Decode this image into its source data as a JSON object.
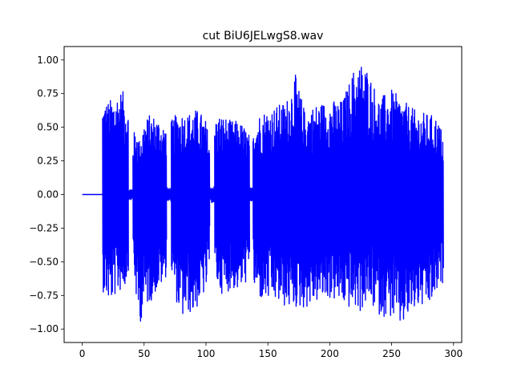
{
  "chart_data": {
    "type": "line",
    "title": "cut BiU6JELwgS8.wav",
    "xlabel": "",
    "ylabel": "",
    "xlim": [
      -14.6,
      306.6
    ],
    "ylim": [
      -1.1,
      1.1
    ],
    "xticks": [
      0,
      50,
      100,
      150,
      200,
      250,
      300
    ],
    "yticks": [
      -1.0,
      -0.75,
      -0.5,
      -0.25,
      0.0,
      0.25,
      0.5,
      0.75,
      1.0
    ],
    "xtick_labels": [
      "0",
      "50",
      "100",
      "150",
      "200",
      "250",
      "300"
    ],
    "ytick_labels": [
      "−1.00",
      "−0.75",
      "−0.50",
      "−0.25",
      "0.00",
      "0.25",
      "0.50",
      "0.75",
      "1.00"
    ],
    "grid": false,
    "line_color": "#0000ff",
    "series": [
      {
        "segments": [
          {
            "type": "silence",
            "x": [
              0,
              16.5
            ]
          },
          {
            "type": "burst",
            "x": [
              16.5,
              37.5
            ],
            "envelope": [
              [
                16.5,
                0.7,
                -0.72
              ],
              [
                22,
                0.7,
                -0.82
              ],
              [
                27,
                0.75,
                -0.75
              ],
              [
                31,
                0.78,
                -0.72
              ],
              [
                35,
                0.75,
                -0.68
              ],
              [
                37.5,
                0.6,
                -0.55
              ]
            ]
          },
          {
            "type": "gap",
            "x": [
              37.5,
              41
            ],
            "amp": 0.04
          },
          {
            "type": "burst",
            "x": [
              41,
              68
            ],
            "envelope": [
              [
                41,
                0.45,
                -0.5
              ],
              [
                44,
                0.5,
                -0.85
              ],
              [
                46,
                0.4,
                -0.98
              ],
              [
                50,
                0.55,
                -0.85
              ],
              [
                55,
                0.6,
                -0.8
              ],
              [
                60,
                0.58,
                -0.72
              ],
              [
                64,
                0.55,
                -0.68
              ],
              [
                68,
                0.5,
                -0.6
              ]
            ]
          },
          {
            "type": "gap",
            "x": [
              68,
              72
            ],
            "amp": 0.05
          },
          {
            "type": "burst",
            "x": [
              72,
              103
            ],
            "envelope": [
              [
                72,
                0.55,
                -0.6
              ],
              [
                76,
                0.6,
                -0.8
              ],
              [
                80,
                0.62,
                -0.94
              ],
              [
                85,
                0.6,
                -0.88
              ],
              [
                90,
                0.64,
                -0.9
              ],
              [
                95,
                0.62,
                -0.8
              ],
              [
                100,
                0.55,
                -0.72
              ],
              [
                103,
                0.4,
                -0.5
              ]
            ]
          },
          {
            "type": "gap",
            "x": [
              103,
              107
            ],
            "amp": 0.06
          },
          {
            "type": "burst",
            "x": [
              107,
              135
            ],
            "envelope": [
              [
                107,
                0.55,
                -0.6
              ],
              [
                110,
                0.6,
                -0.72
              ],
              [
                115,
                0.58,
                -0.75
              ],
              [
                120,
                0.55,
                -0.7
              ],
              [
                125,
                0.55,
                -0.72
              ],
              [
                130,
                0.52,
                -0.7
              ],
              [
                135,
                0.45,
                -0.6
              ]
            ]
          },
          {
            "type": "gap",
            "x": [
              135,
              138
            ],
            "amp": 0.05
          },
          {
            "type": "burst",
            "x": [
              138,
              292
            ],
            "envelope": [
              [
                138,
                0.55,
                -0.7
              ],
              [
                145,
                0.62,
                -0.8
              ],
              [
                155,
                0.65,
                -0.8
              ],
              [
                165,
                0.7,
                -0.85
              ],
              [
                172,
                0.9,
                -0.85
              ],
              [
                180,
                0.62,
                -0.85
              ],
              [
                190,
                0.68,
                -0.8
              ],
              [
                200,
                0.7,
                -0.78
              ],
              [
                210,
                0.7,
                -0.82
              ],
              [
                215,
                0.82,
                -0.85
              ],
              [
                220,
                0.95,
                -0.85
              ],
              [
                225,
                0.99,
                -0.88
              ],
              [
                230,
                0.95,
                -0.8
              ],
              [
                240,
                0.72,
                -0.9
              ],
              [
                250,
                0.78,
                -0.92
              ],
              [
                257,
                0.72,
                -1.0
              ],
              [
                262,
                0.68,
                -0.95
              ],
              [
                270,
                0.62,
                -0.85
              ],
              [
                280,
                0.6,
                -0.85
              ],
              [
                286,
                0.58,
                -0.75
              ],
              [
                292,
                0.45,
                -0.65
              ]
            ]
          }
        ]
      }
    ]
  }
}
